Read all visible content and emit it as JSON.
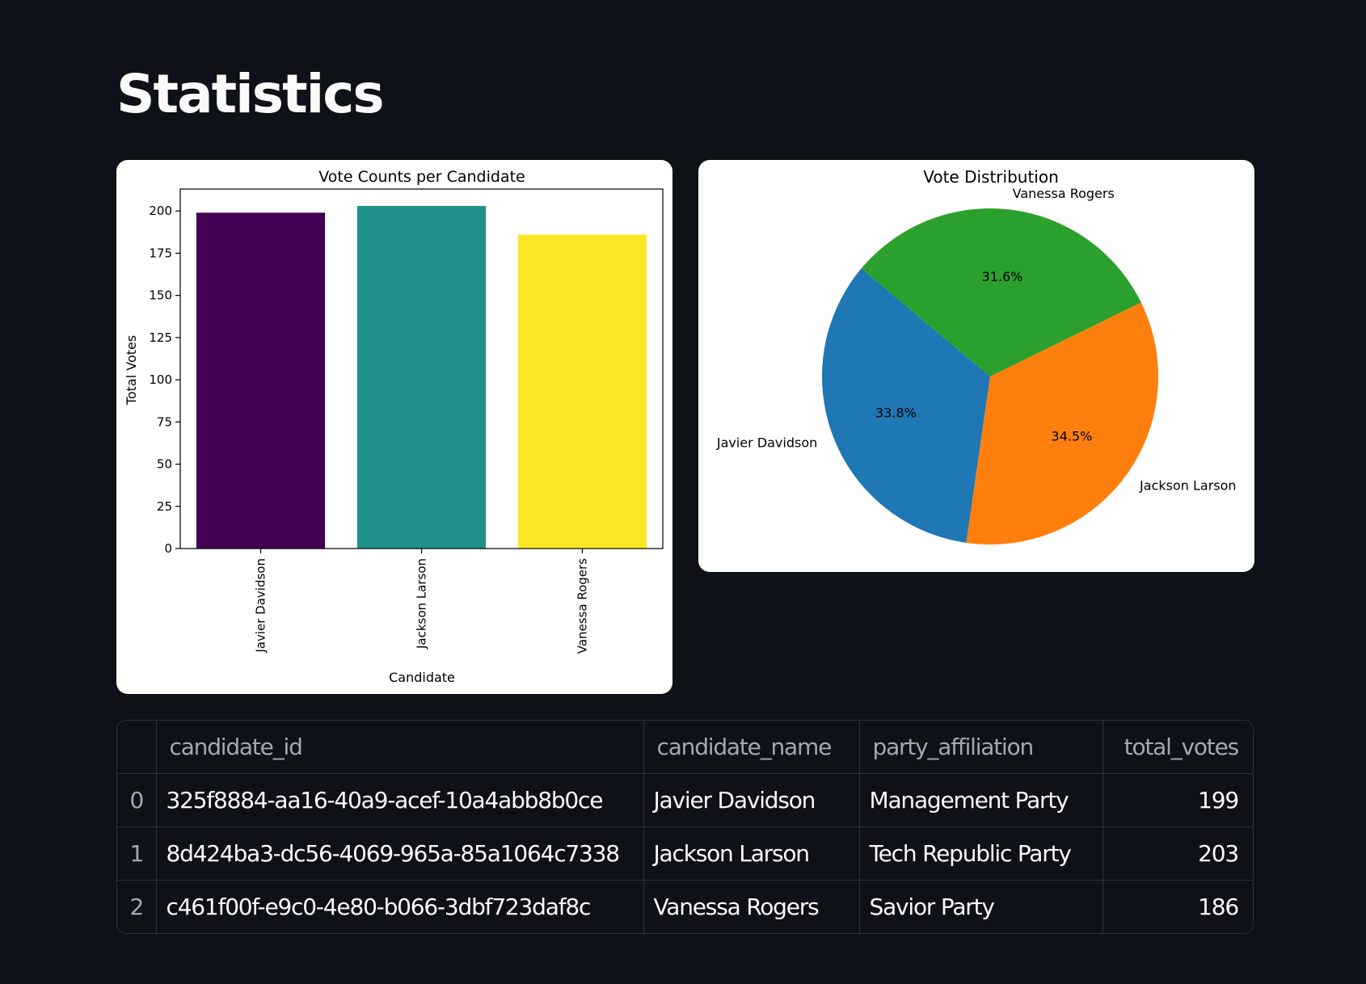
{
  "page": {
    "title": "Statistics"
  },
  "colors": {
    "background": "#0e1117",
    "bar_colors": [
      "#440154",
      "#21918c",
      "#fde725"
    ],
    "pie_colors": [
      "#1f77b4",
      "#ff7f0e",
      "#2ca02c"
    ]
  },
  "chart_data": [
    {
      "type": "bar",
      "title": "Vote Counts per Candidate",
      "xlabel": "Candidate",
      "ylabel": "Total Votes",
      "categories": [
        "Javier Davidson",
        "Jackson Larson",
        "Vanessa Rogers"
      ],
      "values": [
        199,
        203,
        186
      ],
      "ylim": [
        0,
        213
      ],
      "yticks": [
        0,
        25,
        50,
        75,
        100,
        125,
        150,
        175,
        200
      ],
      "ytick_labels": [
        "0",
        "25",
        "50",
        "75",
        "100",
        "125",
        "150",
        "175",
        "200"
      ],
      "grid": false
    },
    {
      "type": "pie",
      "title": "Vote Distribution",
      "labels": [
        "Javier Davidson",
        "Jackson Larson",
        "Vanessa Rogers"
      ],
      "values": [
        199,
        203,
        186
      ],
      "percent_labels": [
        "33.8%",
        "34.5%",
        "31.6%"
      ],
      "start_angle_deg": 140
    }
  ],
  "table": {
    "columns": [
      "",
      "candidate_id",
      "candidate_name",
      "party_affiliation",
      "total_votes"
    ],
    "rows": [
      {
        "index": "0",
        "candidate_id": "325f8884-aa16-40a9-acef-10a4abb8b0ce",
        "candidate_name": "Javier Davidson",
        "party_affiliation": "Management Party",
        "total_votes": "199"
      },
      {
        "index": "1",
        "candidate_id": "8d424ba3-dc56-4069-965a-85a1064c7338",
        "candidate_name": "Jackson Larson",
        "party_affiliation": "Tech Republic Party",
        "total_votes": "203"
      },
      {
        "index": "2",
        "candidate_id": "c461f00f-e9c0-4e80-b066-3dbf723daf8c",
        "candidate_name": "Vanessa Rogers",
        "party_affiliation": "Savior Party",
        "total_votes": "186"
      }
    ]
  }
}
